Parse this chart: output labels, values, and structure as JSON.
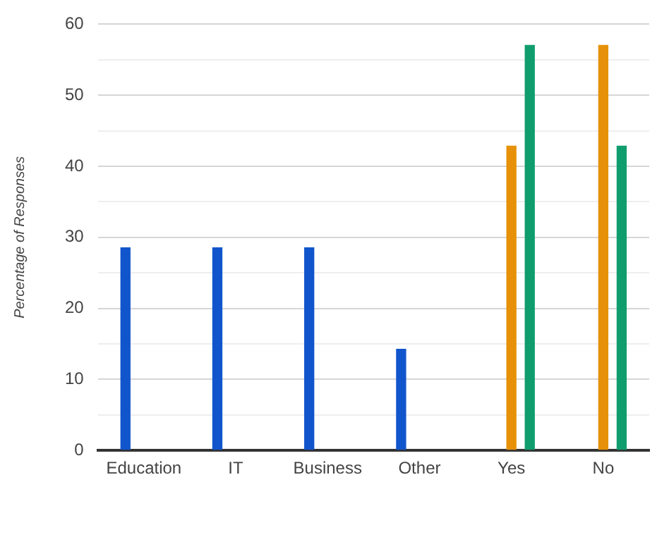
{
  "chart_data": {
    "type": "bar",
    "ylabel": "Percentage of Responses",
    "categories": [
      "Education",
      "IT",
      "Business",
      "Other",
      "Yes",
      "No"
    ],
    "series": [
      {
        "color": "#1155cc",
        "values": [
          28.6,
          28.6,
          28.6,
          14.3,
          null,
          null
        ]
      },
      {
        "color": "#e69109",
        "values": [
          null,
          null,
          null,
          null,
          42.9,
          57.1
        ]
      },
      {
        "color": "#109d6e",
        "values": [
          null,
          null,
          null,
          null,
          57.1,
          42.9
        ]
      }
    ],
    "ylim": [
      0,
      60
    ],
    "yticks": [
      0,
      {
        "value": 5,
        "label": null
      },
      10,
      {
        "value": 15,
        "label": null
      },
      20,
      {
        "value": 25,
        "label": null
      },
      30,
      {
        "value": 35,
        "label": null
      },
      40,
      {
        "value": 45,
        "label": null
      },
      50,
      {
        "value": 55,
        "label": null
      },
      60
    ],
    "grid": "y",
    "legend": false
  }
}
